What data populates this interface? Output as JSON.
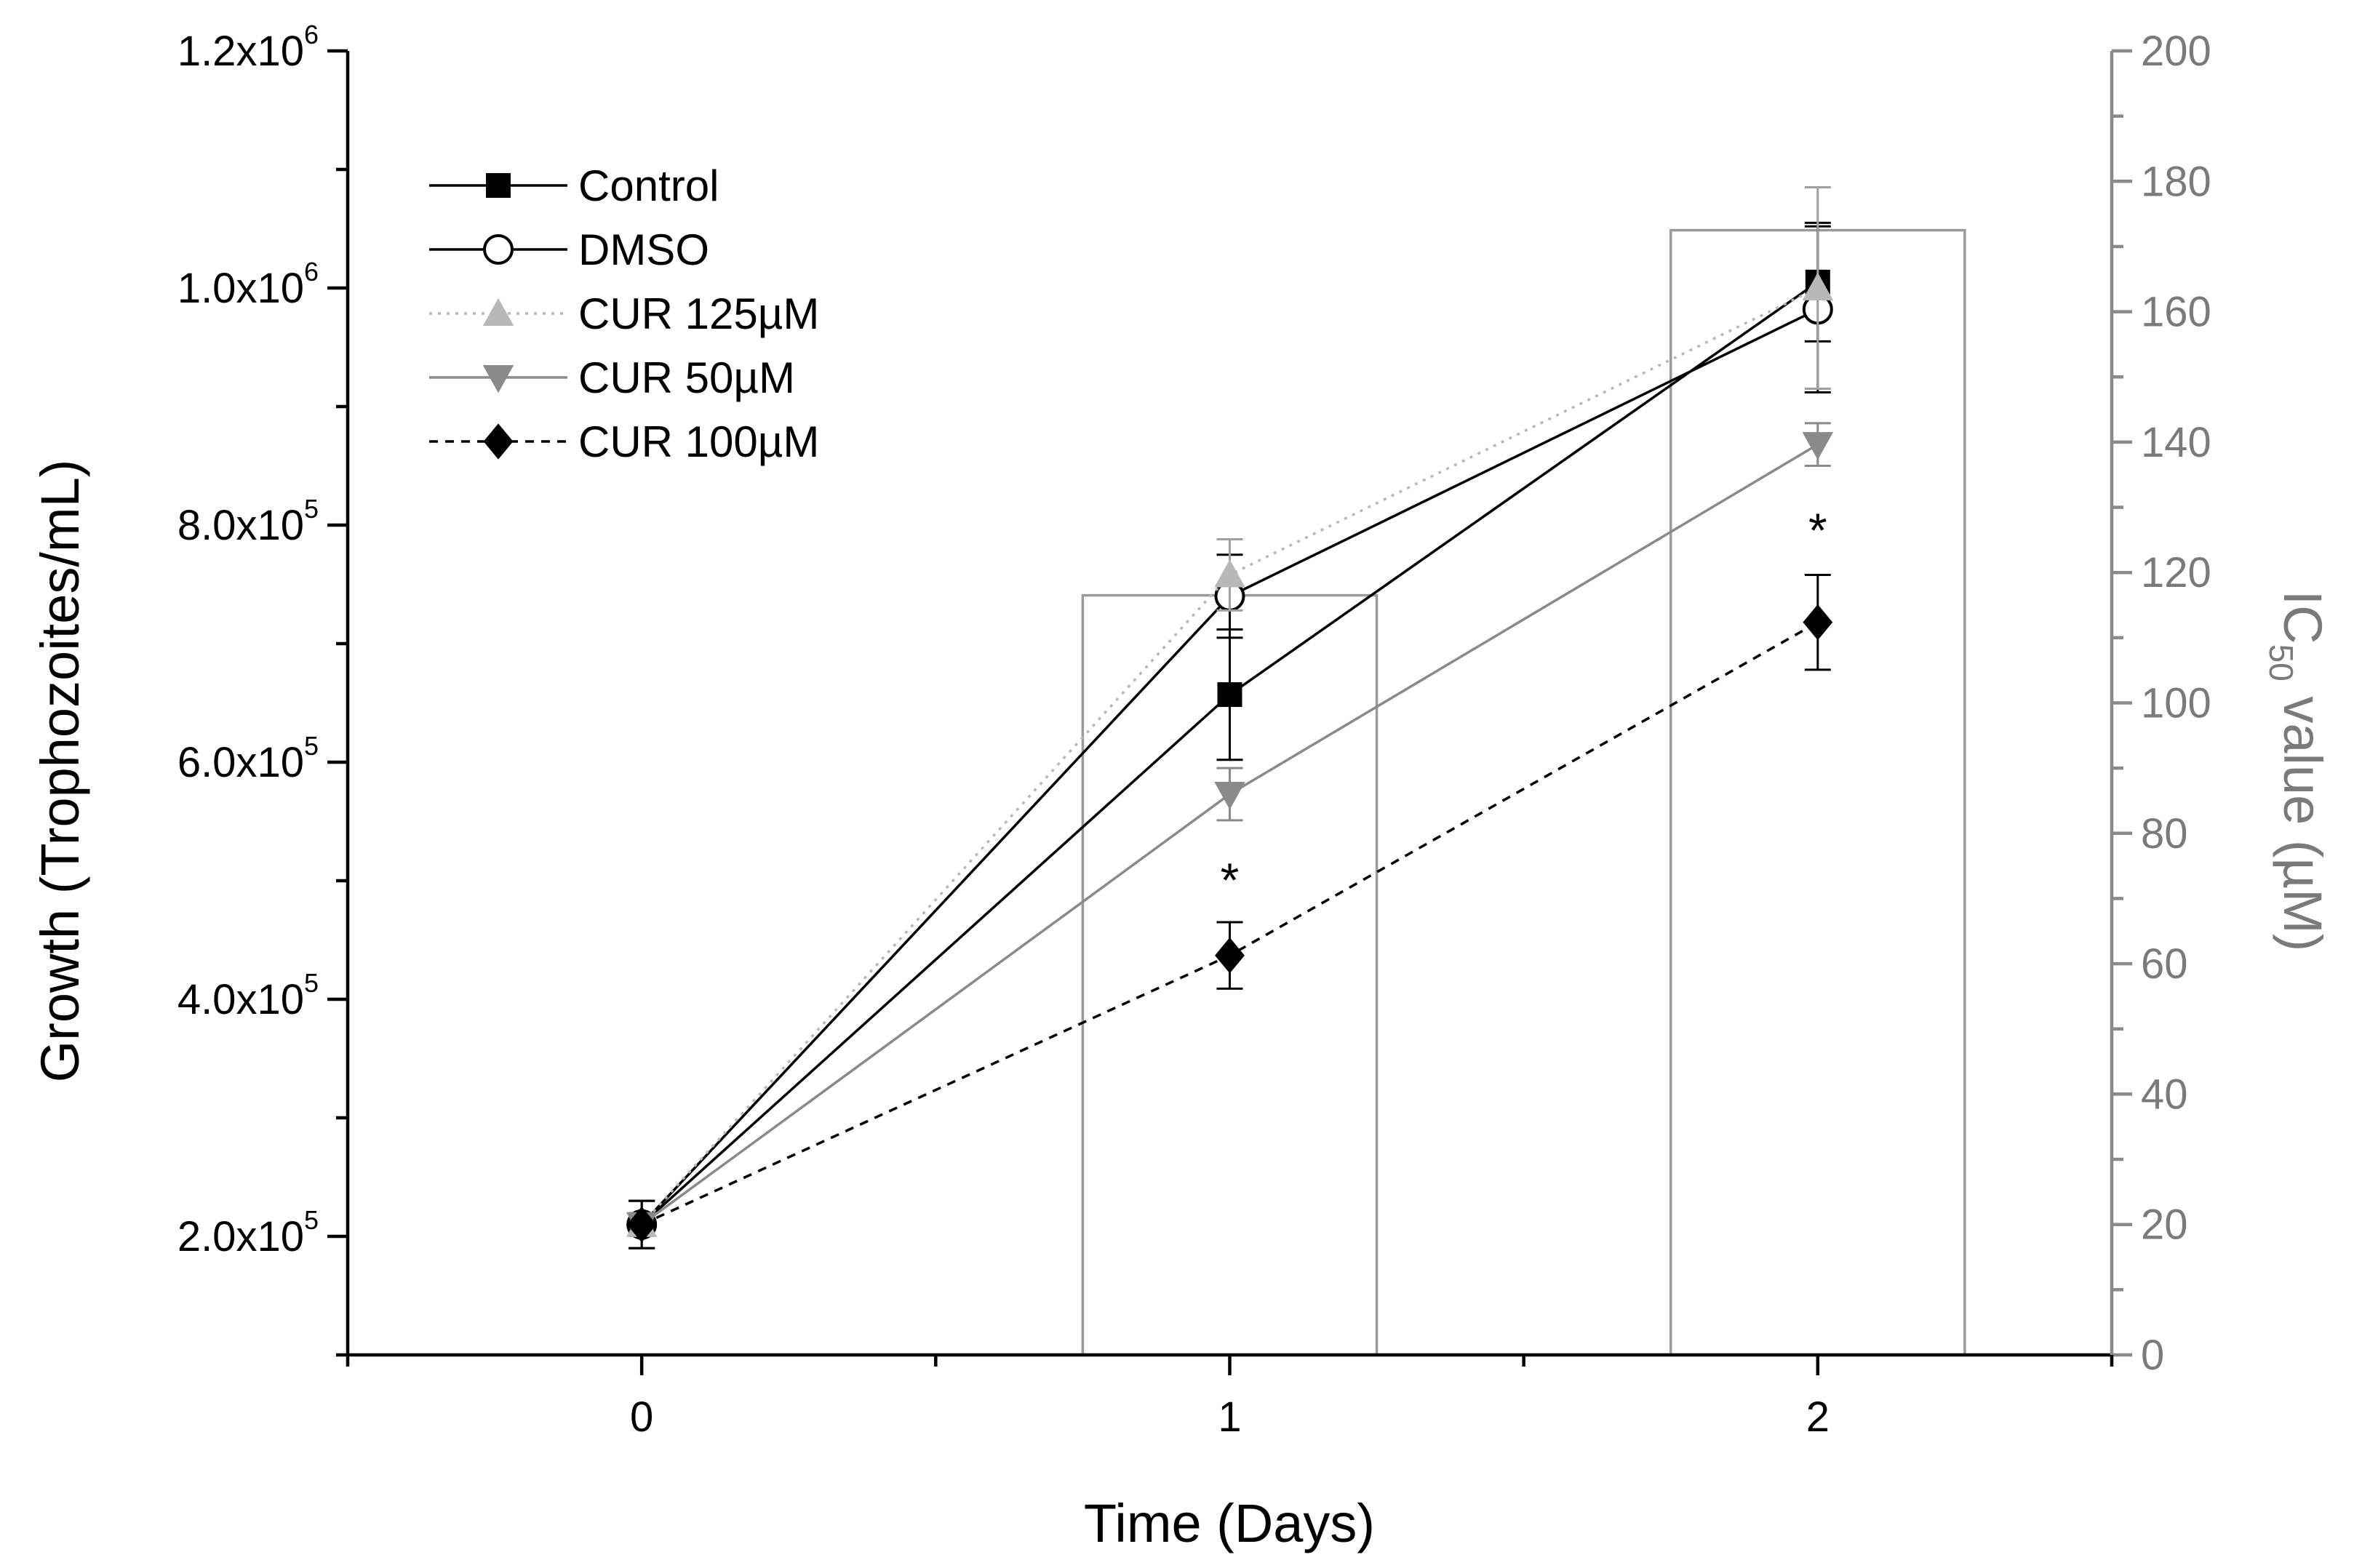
{
  "chart_data": {
    "type": "line",
    "title": "",
    "xlabel": "Time (Days)",
    "ylabel": "Growth (Trophozoites/mL)",
    "y2label_main": "IC",
    "y2label_sub": "50",
    "y2label_rest": " value (µM)",
    "x": [
      0,
      1,
      2
    ],
    "x_tick_labels": [
      "0",
      "1",
      "2"
    ],
    "xlim": [
      -0.5,
      2.5
    ],
    "ylim": [
      100000,
      1200000
    ],
    "y_ticks": [
      {
        "value": 200000,
        "mant": "2.0x10",
        "exp": "5"
      },
      {
        "value": 400000,
        "mant": "4.0x10",
        "exp": "5"
      },
      {
        "value": 600000,
        "mant": "6.0x10",
        "exp": "5"
      },
      {
        "value": 800000,
        "mant": "8.0x10",
        "exp": "5"
      },
      {
        "value": 1000000,
        "mant": "1.0x10",
        "exp": "6"
      },
      {
        "value": 1200000,
        "mant": "1.2x10",
        "exp": "6"
      }
    ],
    "y2lim": [
      0,
      200
    ],
    "y2_ticks": [
      "0",
      "20",
      "40",
      "60",
      "80",
      "100",
      "120",
      "140",
      "160",
      "180",
      "200"
    ],
    "bars": {
      "name": "IC50 value (µM)",
      "x": [
        1,
        2
      ],
      "values": [
        116.5,
        172.5
      ],
      "color": "#9a9a9a"
    },
    "series": [
      {
        "name": "Control",
        "values": [
          210000,
          657000,
          1005000
        ],
        "errors": [
          20000,
          55000,
          50000
        ],
        "marker": "square",
        "color": "#000000",
        "line": "solid"
      },
      {
        "name": "DMSO",
        "values": [
          210000,
          740000,
          982000
        ],
        "errors": [
          20000,
          35000,
          70000
        ],
        "marker": "circle-open",
        "color": "#000000",
        "line": "solid"
      },
      {
        "name": "CUR 125µM",
        "values": [
          210000,
          758000,
          1000000
        ],
        "errors": [
          20000,
          30000,
          85000
        ],
        "marker": "triangle-up",
        "color": "#b8b8b8",
        "line": "dotted"
      },
      {
        "name": "CUR 50µM",
        "values": [
          210000,
          573000,
          868000
        ],
        "errors": [
          20000,
          22000,
          18000
        ],
        "marker": "triangle-down",
        "color": "#8a8a8a",
        "line": "solid"
      },
      {
        "name": "CUR 100µM",
        "values": [
          210000,
          437000,
          718000
        ],
        "errors": [
          20000,
          28000,
          40000
        ],
        "marker": "diamond",
        "color": "#000000",
        "line": "dashed"
      }
    ],
    "annotations": [
      {
        "text": "*",
        "x": 1,
        "y": 505000
      },
      {
        "text": "*",
        "x": 2,
        "y": 800000
      }
    ],
    "legend": "top-left",
    "grid": false
  }
}
